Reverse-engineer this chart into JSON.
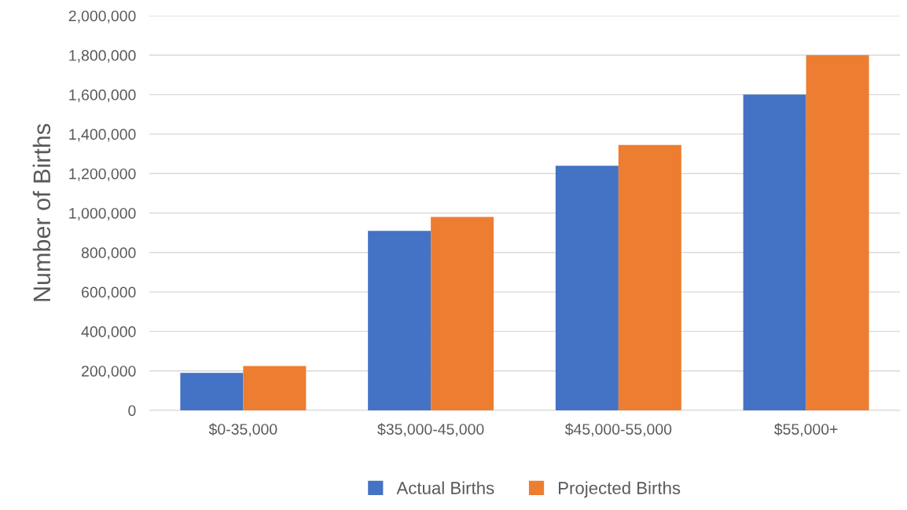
{
  "chart_data": {
    "type": "bar",
    "ylabel": "Number of Births",
    "categories": [
      "$0-35,000",
      "$35,000-45,000",
      "$45,000-55,000",
      "$55,000+"
    ],
    "series": [
      {
        "name": "Actual Births",
        "color": "#4472c4",
        "values": [
          190000,
          910000,
          1240000,
          1600000
        ]
      },
      {
        "name": "Projected Births",
        "color": "#ed7d31",
        "values": [
          225000,
          980000,
          1345000,
          1800000
        ]
      }
    ],
    "ylim": [
      0,
      2000000
    ],
    "yticks": [
      {
        "value": 0,
        "label": "0"
      },
      {
        "value": 200000,
        "label": "200,000"
      },
      {
        "value": 400000,
        "label": "400,000"
      },
      {
        "value": 600000,
        "label": "600,000"
      },
      {
        "value": 800000,
        "label": "800,000"
      },
      {
        "value": 1000000,
        "label": "1,000,000"
      },
      {
        "value": 1200000,
        "label": "1,200,000"
      },
      {
        "value": 1400000,
        "label": "1,400,000"
      },
      {
        "value": 1600000,
        "label": "1,600,000"
      },
      {
        "value": 1800000,
        "label": "1,800,000"
      },
      {
        "value": 2000000,
        "label": "2,000,000"
      }
    ],
    "grid": "y",
    "legend": "bottom"
  }
}
